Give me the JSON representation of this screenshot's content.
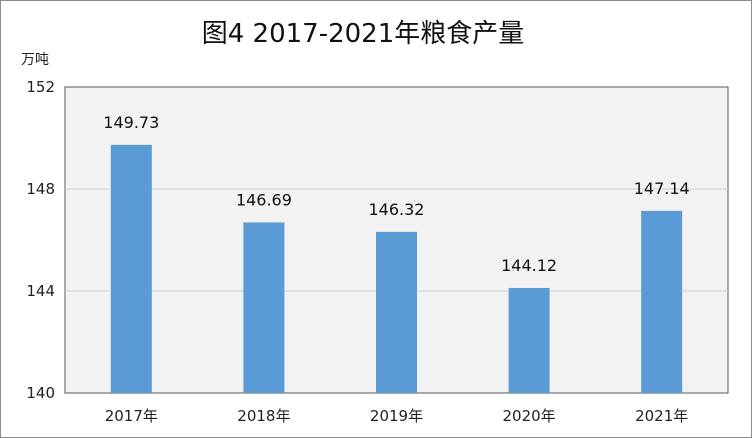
{
  "chart_data": {
    "type": "bar",
    "title": "图4 2017-2021年粮食产量",
    "ylabel": "万吨",
    "xlabel": "",
    "categories": [
      "2017年",
      "2018年",
      "2019年",
      "2020年",
      "2021年"
    ],
    "values": [
      149.73,
      146.69,
      146.32,
      144.12,
      147.14
    ],
    "value_labels": [
      "149.73",
      "146.69",
      "146.32",
      "144.12",
      "147.14"
    ],
    "ylim": [
      140,
      152
    ],
    "yticks": [
      "140",
      "144",
      "148",
      "152"
    ],
    "grid": true,
    "legend": "none",
    "colors": {
      "bar": "#5b9bd5",
      "plot_background": "#f2f2f2",
      "gridline": "#d0d0d0"
    }
  }
}
